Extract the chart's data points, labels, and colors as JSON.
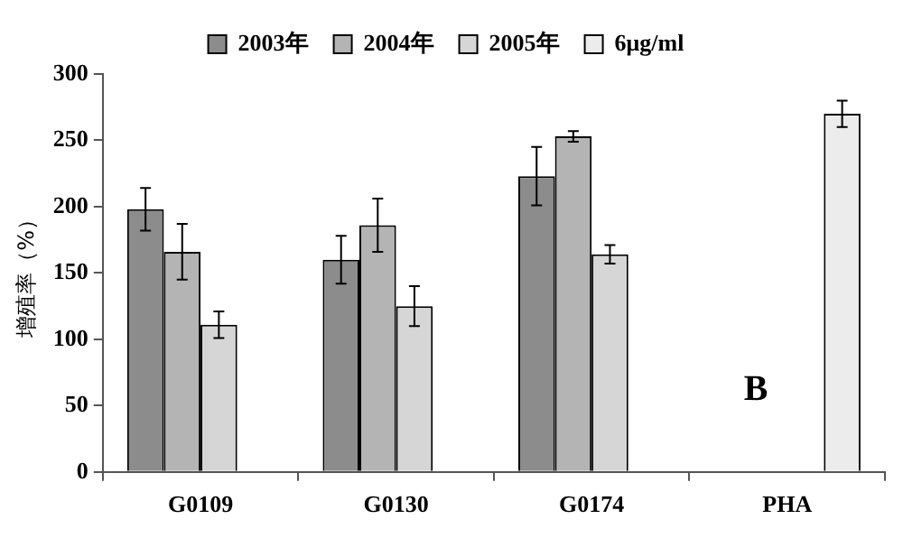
{
  "chart_data": {
    "type": "bar",
    "ylabel": "增殖率（%）",
    "categories": [
      "G0109",
      "G0130",
      "G0174",
      "PHA"
    ],
    "series": [
      {
        "name": "2003年",
        "color": "#8c8c8c",
        "values": [
          198,
          160,
          223,
          null
        ],
        "errors": [
          16,
          18,
          22,
          null
        ]
      },
      {
        "name": "2004年",
        "color": "#b4b4b4",
        "values": [
          166,
          186,
          253,
          null
        ],
        "errors": [
          21,
          20,
          4,
          null
        ]
      },
      {
        "name": "2005年",
        "color": "#d6d6d6",
        "values": [
          111,
          125,
          164,
          null
        ],
        "errors": [
          10,
          15,
          7,
          null
        ]
      },
      {
        "name": "6μg/ml",
        "color": "#ececec",
        "values": [
          null,
          null,
          null,
          270
        ],
        "errors": [
          null,
          null,
          null,
          10
        ]
      }
    ],
    "ylim": [
      0,
      300
    ],
    "yticks": [
      0,
      50,
      100,
      150,
      200,
      250,
      300
    ],
    "grid": false,
    "legend": "top",
    "annotations": [
      "B"
    ]
  }
}
